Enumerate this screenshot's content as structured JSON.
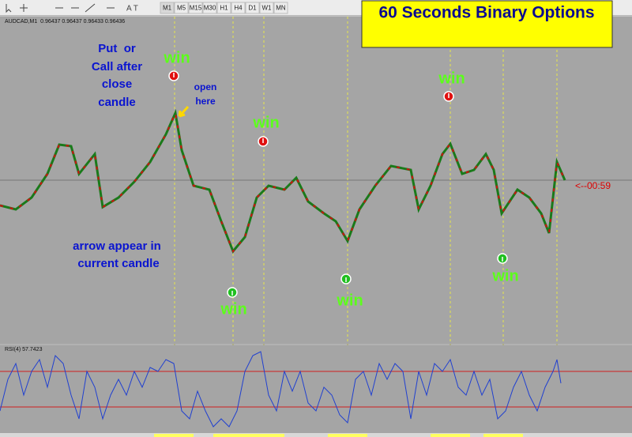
{
  "toolbar": {
    "timeframes": [
      "M1",
      "M5",
      "M15",
      "M30",
      "H1",
      "H4",
      "D1",
      "W1",
      "MN"
    ]
  },
  "chart": {
    "symbol_info": "AUDCAD,M1  0.96437 0.96437 0.96433 0.96436",
    "timer": "<--00:59",
    "indicator": "RSI(4) 57.7423"
  },
  "annotations": {
    "title": "60 Seconds Binary Options",
    "instruction": [
      "Put  or",
      "Call after",
      "close",
      "candle"
    ],
    "open_here": [
      "open",
      "here"
    ],
    "arrow_note": [
      "arrow appear in",
      "current candle"
    ],
    "wins": [
      "win",
      "win",
      "win",
      "win",
      "win",
      "win"
    ]
  }
}
